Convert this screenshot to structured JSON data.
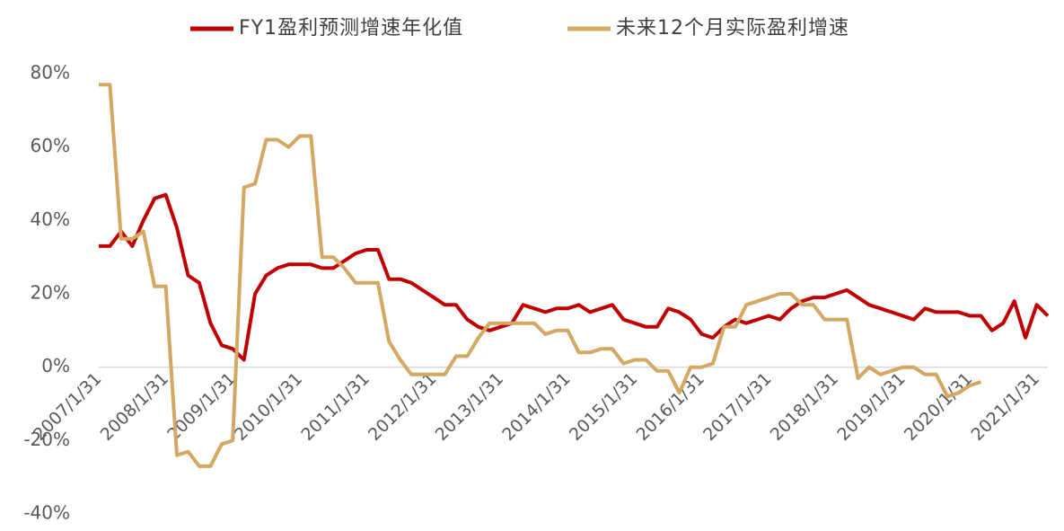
{
  "chart_data": {
    "type": "line",
    "categories": [
      "2007/1/31",
      null,
      null,
      null,
      null,
      null,
      "2008/1/31",
      null,
      null,
      null,
      null,
      null,
      "2009/1/31",
      null,
      null,
      null,
      null,
      null,
      "2010/1/31",
      null,
      null,
      null,
      null,
      null,
      "2011/1/31",
      null,
      null,
      null,
      null,
      null,
      "2012/1/31",
      null,
      null,
      null,
      null,
      null,
      "2013/1/31",
      null,
      null,
      null,
      null,
      null,
      "2014/1/31",
      null,
      null,
      null,
      null,
      null,
      "2015/1/31",
      null,
      null,
      null,
      null,
      null,
      "2016/1/31",
      null,
      null,
      null,
      null,
      null,
      "2017/1/31",
      null,
      null,
      null,
      null,
      null,
      "2018/1/31",
      null,
      null,
      null,
      null,
      null,
      "2019/1/31",
      null,
      null,
      null,
      null,
      null,
      "2020/1/31",
      null,
      null,
      null,
      null,
      null,
      "2021/1/31",
      null
    ],
    "series": [
      {
        "name": "FY1盈利预测增速年化值",
        "color": "#c00000",
        "values": [
          33,
          33,
          37,
          33,
          40,
          46,
          47,
          38,
          25,
          23,
          12,
          6,
          5,
          2,
          20,
          25,
          27,
          28,
          28,
          28,
          27,
          27,
          29,
          31,
          32,
          32,
          24,
          24,
          23,
          21,
          19,
          17,
          17,
          13,
          11,
          10,
          11,
          12,
          17,
          16,
          15,
          16,
          16,
          17,
          15,
          16,
          17,
          13,
          12,
          11,
          11,
          16,
          15,
          13,
          9,
          8,
          11,
          13,
          12,
          13,
          14,
          13,
          16,
          18,
          19,
          19,
          20,
          21,
          19,
          17,
          16,
          15,
          14,
          13,
          16,
          15,
          15,
          15,
          14,
          14,
          10,
          12,
          18,
          8,
          17,
          14
        ]
      },
      {
        "name": "未来12个月实际盈利增速",
        "color": "#d4a762",
        "values": [
          77,
          77,
          35,
          35,
          37,
          22,
          22,
          -24,
          -23,
          -27,
          -27,
          -21,
          -20,
          49,
          50,
          62,
          62,
          60,
          63,
          63,
          30,
          30,
          27,
          23,
          23,
          23,
          7,
          2,
          -2,
          -2,
          -2,
          -2,
          3,
          3,
          8,
          12,
          12,
          12,
          12,
          12,
          9,
          10,
          10,
          4,
          4,
          5,
          5,
          1,
          2,
          2,
          -1,
          -1,
          -7,
          0,
          0,
          1,
          11,
          11,
          17,
          18,
          19,
          20,
          20,
          17,
          17,
          13,
          13,
          13,
          -3,
          0,
          -2,
          -1,
          0,
          0,
          -2,
          -2,
          -8,
          -7,
          -5,
          -4,
          null,
          null,
          null,
          null,
          null,
          null
        ]
      }
    ],
    "ylim": [
      -40,
      80
    ],
    "yticks": [
      {
        "value": -40,
        "label": "-40%"
      },
      {
        "value": -20,
        "label": "-20%"
      },
      {
        "value": 0,
        "label": "0%"
      },
      {
        "value": 20,
        "label": "20%"
      },
      {
        "value": 40,
        "label": "40%"
      },
      {
        "value": 60,
        "label": "60%"
      },
      {
        "value": 80,
        "label": "80%"
      }
    ],
    "grid": false
  }
}
